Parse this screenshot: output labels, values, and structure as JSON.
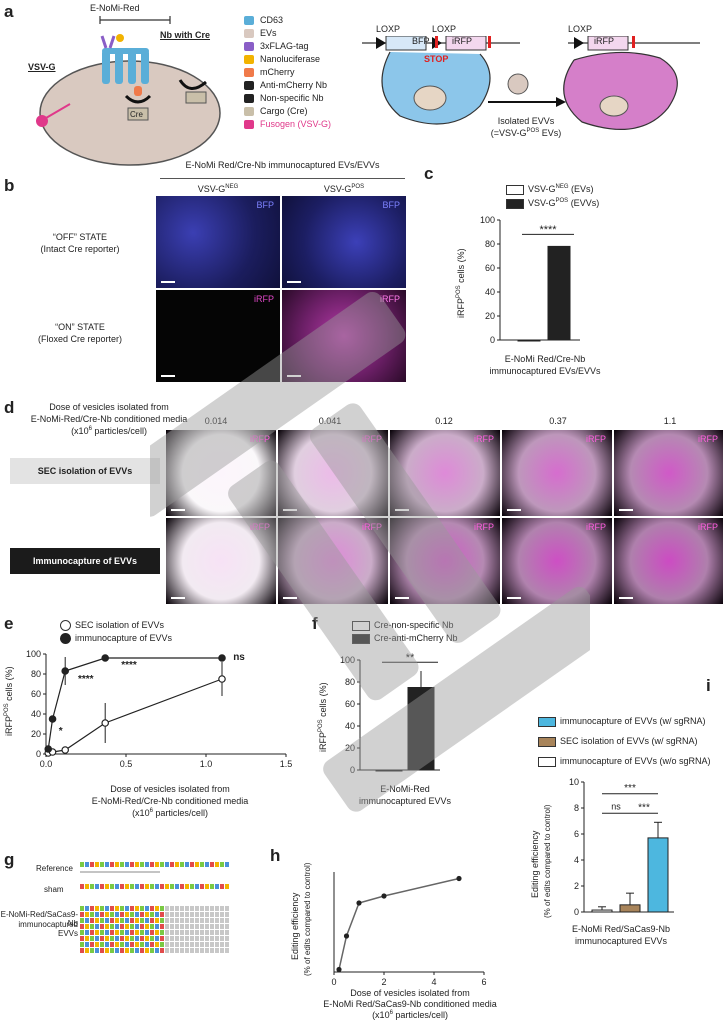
{
  "panels": {
    "a": "a",
    "b": "b",
    "c": "c",
    "d": "d",
    "e": "e",
    "f": "f",
    "g": "g",
    "h": "h",
    "i": "i"
  },
  "panel_a": {
    "construct": "E-NoMi-Red",
    "vsvg": "VSV-G",
    "nb_cre": "Nb with Cre",
    "cre": "Cre",
    "legend": [
      {
        "label": "CD63",
        "color": "#5aaed8"
      },
      {
        "label": "EVs",
        "color": "#d9c9c0"
      },
      {
        "label": "3xFLAG-tag",
        "color": "#8a5ec7"
      },
      {
        "label": "Nanoluciferase",
        "color": "#f2b300"
      },
      {
        "label": "mCherry",
        "color": "#f07a4a"
      },
      {
        "label": "Anti-mCherry Nb",
        "color": "#222222"
      },
      {
        "label": "Non-specific Nb",
        "color": "#222222"
      },
      {
        "label": "Cargo (Cre)",
        "color": "#c9bfa9"
      },
      {
        "label": "Fusogen (VSV-G)",
        "color": "#e0388a"
      }
    ],
    "loxp1": "LOXP",
    "loxp2": "LOXP",
    "loxp3": "LOXP",
    "bfp": "BFP",
    "irfp": "iRFP",
    "irfp2": "iRFP",
    "stop": "STOP",
    "isolated": "Isolated EVVs",
    "isolated_sub": "(=VSV-G",
    "isolated_sup": "POS",
    "isolated_end": " EVs)"
  },
  "panel_b": {
    "header": "E-NoMi Red/Cre-Nb immunocaptured EVs/EVVs",
    "col1": "VSV-G",
    "col1_sup": "NEG",
    "col2": "VSV-G",
    "col2_sup": "POS",
    "row1": "“OFF” STATE",
    "row1_sub": "(Intact Cre reporter)",
    "row2": "“ON” STATE",
    "row2_sub": "(Floxed Cre reporter)",
    "bfp": "BFP",
    "irfp": "iRFP"
  },
  "panel_c": {
    "legend1": "VSV-G",
    "legend1_sup": "NEG",
    "legend1_end": " (EVs)",
    "legend2": "VSV-G",
    "legend2_sup": "POS",
    "legend2_end": " (EVVs)",
    "ylabel": "iRFP",
    "ylabel_sup": "POS",
    "ylabel_end": " cells (%)",
    "sig": "****",
    "xlabel1": "E-NoMi Red/Cre-Nb",
    "xlabel2": "immunocaptured EVs/EVVs"
  },
  "panel_d": {
    "dose_title1": "Dose of vesicles isolated from",
    "dose_title2": "E-NoMi-Red/Cre-Nb conditioned media",
    "dose_title3": "(x10",
    "dose_title_sup": "6",
    "dose_title4": " particles/cell)",
    "doses": [
      "0.014",
      "0.041",
      "0.12",
      "0.37",
      "1.1"
    ],
    "row1": "SEC isolation of EVVs",
    "row2": "Immunocapture of EVVs",
    "irfp": "iRFP",
    "intensity_sec": [
      0.05,
      0.35,
      0.6,
      0.75,
      0.85
    ],
    "intensity_imm": [
      0.15,
      0.6,
      0.85,
      0.9,
      0.92
    ]
  },
  "chart_data": [
    {
      "id": "c",
      "type": "bar",
      "categories": [
        "VSV-G NEG (EVs)",
        "VSV-G POS (EVVs)"
      ],
      "values": [
        0,
        78
      ],
      "ylim": [
        0,
        100
      ],
      "yticks": [
        "0",
        "20",
        "40",
        "60",
        "80",
        "100"
      ],
      "colors": [
        "#ffffff",
        "#222222"
      ]
    },
    {
      "id": "e",
      "type": "line",
      "title": "",
      "xlabel": "Dose of vesicles isolated from E-NoMi-Red/Cre-Nb conditioned media (x10^6 particles/cell)",
      "ylabel": "iRFP POS cells (%)",
      "xlim": [
        0,
        1.5
      ],
      "ylim": [
        0,
        100
      ],
      "xticks": [
        "0.0",
        "0.5",
        "1.0",
        "1.5"
      ],
      "yticks": [
        "0",
        "20",
        "40",
        "60",
        "80",
        "100"
      ],
      "series": [
        {
          "name": "SEC isolation of EVVs",
          "x": [
            0.014,
            0.041,
            0.12,
            0.37,
            1.1
          ],
          "y": [
            1,
            2,
            4,
            31,
            75
          ],
          "err": [
            1,
            1,
            2,
            20,
            17
          ],
          "fill": "#ffffff"
        },
        {
          "name": "immunocapture of EVVs",
          "x": [
            0.014,
            0.041,
            0.12,
            0.37,
            1.1
          ],
          "y": [
            5,
            35,
            83,
            96,
            96
          ],
          "err": [
            2,
            3,
            14,
            3,
            3
          ],
          "fill": "#222222"
        }
      ],
      "annotations": [
        {
          "text": "*",
          "x": 0.08,
          "y": 20
        },
        {
          "text": "****",
          "x": 0.2,
          "y": 72
        },
        {
          "text": "****",
          "x": 0.47,
          "y": 86
        },
        {
          "text": "ns",
          "x": 1.17,
          "y": 94
        }
      ]
    },
    {
      "id": "f",
      "type": "bar",
      "categories": [
        "Cre-non-specific Nb",
        "Cre-anti-mCherry Nb"
      ],
      "values": [
        0,
        75
      ],
      "err": [
        0,
        15
      ],
      "ylim": [
        0,
        100
      ],
      "yticks": [
        "0",
        "20",
        "40",
        "60",
        "80",
        "100"
      ],
      "colors": [
        "#ffffff",
        "#222222"
      ]
    },
    {
      "id": "h",
      "type": "line",
      "xlim": [
        0,
        6
      ],
      "ylim": [
        0,
        2
      ],
      "xticks": [
        "0",
        "2",
        "4",
        "6"
      ],
      "x": [
        0.2,
        0.5,
        1,
        2,
        5
      ],
      "y": [
        0.05,
        0.72,
        1.38,
        1.52,
        1.87
      ]
    },
    {
      "id": "i",
      "type": "bar",
      "categories": [
        "immunocapture of EVVs (w/o sgRNA)",
        "SEC isolation of EVVs (w/ sgRNA)",
        "immunocapture of EVVs (w/ sgRNA)"
      ],
      "values": [
        0.15,
        0.55,
        5.7
      ],
      "err": [
        0.25,
        0.9,
        1.2
      ],
      "ylim": [
        0,
        10
      ],
      "yticks": [
        "0",
        "2",
        "4",
        "6",
        "8",
        "10"
      ],
      "colors": [
        "#ffffff",
        "#a8845a",
        "#4db7df"
      ]
    }
  ],
  "panel_e": {
    "legend1": "SEC isolation of EVVs",
    "legend2": "immunocapture of EVVs",
    "ylabel": "iRFP",
    "ylabel_sup": "POS",
    "ylabel_end": " cells (%)",
    "xlabel1": "Dose of vesicles isolated from",
    "xlabel2": "E-NoMi-Red/Cre-Nb conditioned media",
    "xlabel3": "(x10",
    "xlabel_sup": "6",
    "xlabel4": " particles/cell)"
  },
  "panel_f": {
    "legend1": "Cre-non-specific Nb",
    "legend2": "Cre-anti-mCherry Nb",
    "sig": "**",
    "ylabel": "iRFP",
    "ylabel_sup": "POS",
    "ylabel_end": " cells (%)",
    "xlabel1": "E-NoMi-Red",
    "xlabel2": "immunocaptured EVVs"
  },
  "panel_g": {
    "row1": "Reference",
    "row2": "sham",
    "row3a": "E-NoMi-Red/SaCas9-Nb",
    "row3b": "immunocaptured EVVs"
  },
  "panel_h": {
    "ylabel1": "Editing efficiency",
    "ylabel2": "(% of edits compared to control)",
    "xlabel1": "Dose of vesicles isolated from",
    "xlabel2": "E-NoMi Red/SaCas9-Nb conditioned media",
    "xlabel3": "(x10",
    "xlabel_sup": "6",
    "xlabel4": " particles/cell)"
  },
  "panel_i": {
    "legend1": "immunocapture of EVVs (w/ sgRNA)",
    "legend2": "SEC isolation of EVVs (w/ sgRNA)",
    "legend3": "immunocapture of EVVs (w/o sgRNA)",
    "ns": "ns",
    "sig1": "***",
    "sig2": "***",
    "ylabel1": "Editing efficiency",
    "ylabel2": "(% of edits compared to control)",
    "xlabel1": "E-NoMi Red/SaCas9-Nb",
    "xlabel2": "immunocaptured EVVs"
  },
  "colors": {
    "accent_magenta": "#d63ca7",
    "bfp_blue": "#24256e",
    "irfp_pink": "#c13fbf",
    "cyan": "#4db7df",
    "brown": "#a8845a"
  }
}
